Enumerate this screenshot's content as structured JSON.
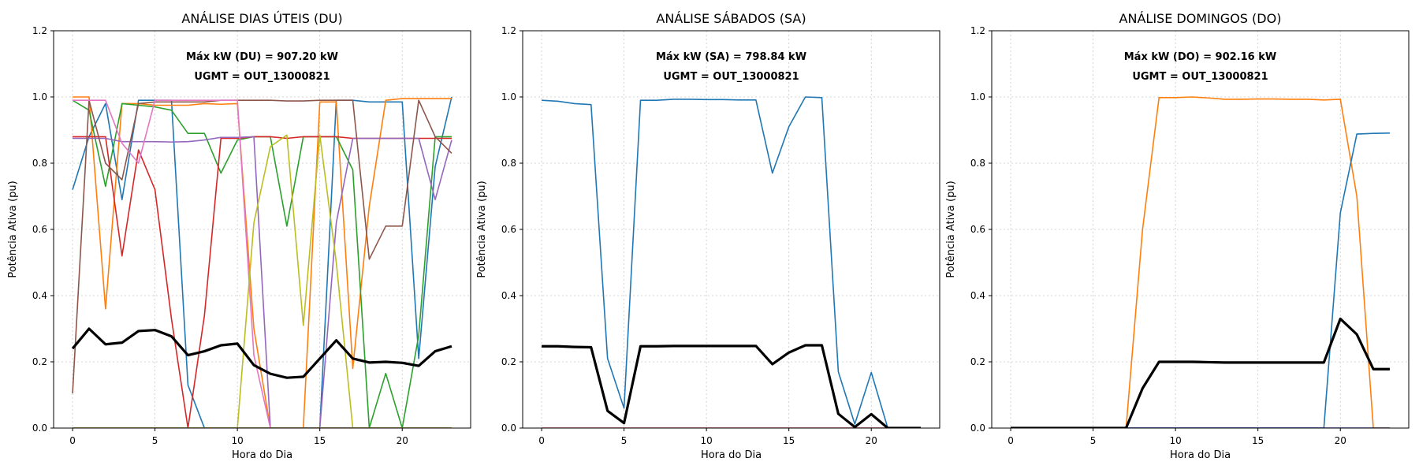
{
  "chart_data": [
    {
      "type": "line",
      "title": "ANÁLISE DIAS ÚTEIS (DU)",
      "annotations": [
        "Máx kW (DU) = 907.20 kW",
        "UGMT = OUT_13000821"
      ],
      "xlabel": "Hora do Dia",
      "ylabel": "Potência Ativa (pu)",
      "xlim": [
        -1.15,
        24.15
      ],
      "ylim": [
        0,
        1.2
      ],
      "xticks": [
        0,
        5,
        10,
        15,
        20
      ],
      "yticks": [
        "0.0",
        "0.2",
        "0.4",
        "0.6",
        "0.8",
        "1.0",
        "1.2"
      ],
      "grid": true,
      "x": [
        0,
        1,
        2,
        3,
        4,
        5,
        6,
        7,
        8,
        9,
        10,
        11,
        12,
        13,
        14,
        15,
        16,
        17,
        18,
        19,
        20,
        21,
        22,
        23
      ],
      "series": [
        {
          "color": "#1f77b4",
          "values": [
            0.72,
            0.88,
            0.98,
            0.69,
            0.99,
            0.99,
            0.99,
            0.13,
            0,
            0,
            0,
            0,
            0,
            0,
            0,
            0,
            0.99,
            0.99,
            0.985,
            0.985,
            0.985,
            0.21,
            0.79,
            1.0
          ]
        },
        {
          "color": "#ff7f0e",
          "values": [
            1.0,
            1.0,
            0.36,
            0.98,
            0.98,
            0.975,
            0.975,
            0.975,
            0.98,
            0.978,
            0.98,
            0.3,
            0,
            0,
            0,
            0.985,
            0.985,
            0.18,
            0.67,
            0.99,
            0.995,
            0.995,
            0.995,
            0.995
          ]
        },
        {
          "color": "#2ca02c",
          "values": [
            0.99,
            0.96,
            0.73,
            0.98,
            0.975,
            0.97,
            0.96,
            0.89,
            0.89,
            0.77,
            0.87,
            0.88,
            0.88,
            0.61,
            0.88,
            0.88,
            0.88,
            0.78,
            0,
            0.165,
            0,
            0.28,
            0.88,
            0.88
          ]
        },
        {
          "color": "#d62728",
          "values": [
            0.88,
            0.88,
            0.88,
            0.52,
            0.84,
            0.72,
            0.33,
            0,
            0.34,
            0.875,
            0.875,
            0.88,
            0.88,
            0.875,
            0.88,
            0.88,
            0.88,
            0.875,
            0.875,
            0.875,
            0.875,
            0.875,
            0.875,
            0.875
          ]
        },
        {
          "color": "#9467bd",
          "values": [
            0.875,
            0.875,
            0.875,
            0.865,
            0.865,
            0.865,
            0.864,
            0.865,
            0.87,
            0.878,
            0.878,
            0.88,
            0,
            0,
            0,
            0,
            0.62,
            0.875,
            0.875,
            0.875,
            0.875,
            0.875,
            0.69,
            0.87
          ]
        },
        {
          "color": "#8c564b",
          "values": [
            0.105,
            0.99,
            0.8,
            0.75,
            0.98,
            0.985,
            0.985,
            0.985,
            0.985,
            0.99,
            0.99,
            0.99,
            0.99,
            0.988,
            0.988,
            0.99,
            0.99,
            0.99,
            0.51,
            0.61,
            0.61,
            0.99,
            0.88,
            0.83
          ]
        },
        {
          "color": "#e377c2",
          "values": [
            0.99,
            0.99,
            0.99,
            0.86,
            0.8,
            0.99,
            0.99,
            0.99,
            0.99,
            0.99,
            0.99,
            0.22,
            0,
            0,
            0,
            0,
            0,
            0,
            0,
            0,
            0,
            0,
            0,
            0
          ]
        },
        {
          "color": "#7f7f7f",
          "values": [
            0,
            0,
            0,
            0,
            0,
            0,
            0,
            0,
            0,
            0,
            0,
            0,
            0,
            0,
            0,
            0,
            0,
            0,
            0,
            0,
            0,
            0,
            0,
            0
          ]
        },
        {
          "color": "#bcbd22",
          "values": [
            0,
            0,
            0,
            0,
            0,
            0,
            0,
            0,
            0,
            0,
            0,
            0.62,
            0.85,
            0.885,
            0.31,
            0.885,
            0.5,
            0,
            0,
            0,
            0,
            0,
            0,
            0
          ]
        },
        {
          "color": "#17becf",
          "values": [
            0,
            0,
            0,
            0,
            0,
            0,
            0,
            0,
            0,
            0,
            0,
            0,
            0,
            0,
            0,
            0,
            0,
            0,
            0,
            0,
            0,
            0,
            0,
            0
          ]
        },
        {
          "color": "#ff7f0e",
          "values": [
            0,
            0,
            0,
            0,
            0,
            0,
            0,
            0,
            0,
            0,
            0,
            0,
            0,
            0,
            0,
            0,
            0,
            0,
            0,
            0,
            0,
            0,
            0,
            0
          ]
        },
        {
          "color": "#000000",
          "width": 3.2,
          "values": [
            0.24,
            0.3,
            0.253,
            0.258,
            0.293,
            0.296,
            0.277,
            0.22,
            0.232,
            0.25,
            0.255,
            0.19,
            0.164,
            0.152,
            0.155,
            0.21,
            0.265,
            0.21,
            0.198,
            0.2,
            0.197,
            0.188,
            0.232,
            0.247
          ]
        }
      ]
    },
    {
      "type": "line",
      "title": "ANÁLISE SÁBADOS (SA)",
      "annotations": [
        "Máx kW (SA) = 798.84 kW",
        "UGMT = OUT_13000821"
      ],
      "xlabel": "Hora do Dia",
      "ylabel": "Potência Ativa (pu)",
      "xlim": [
        -1.15,
        24.15
      ],
      "ylim": [
        0,
        1.2
      ],
      "xticks": [
        0,
        5,
        10,
        15,
        20
      ],
      "yticks": [
        "0.0",
        "0.2",
        "0.4",
        "0.6",
        "0.8",
        "1.0",
        "1.2"
      ],
      "grid": true,
      "x": [
        0,
        1,
        2,
        3,
        4,
        5,
        6,
        7,
        8,
        9,
        10,
        11,
        12,
        13,
        14,
        15,
        16,
        17,
        18,
        19,
        20,
        21,
        22,
        23
      ],
      "series": [
        {
          "color": "#1f77b4",
          "values": [
            0.99,
            0.987,
            0.98,
            0.977,
            0.21,
            0.06,
            0.99,
            0.99,
            0.993,
            0.993,
            0.992,
            0.992,
            0.991,
            0.991,
            0.77,
            0.91,
            1.0,
            0.998,
            0.17,
            0.012,
            0.168,
            0,
            0,
            0
          ]
        },
        {
          "color": "#d62728",
          "values": [
            0,
            0,
            0,
            0,
            0,
            0,
            0,
            0,
            0,
            0,
            0,
            0,
            0,
            0,
            0,
            0,
            0,
            0,
            0,
            0,
            0,
            0,
            0,
            0
          ]
        },
        {
          "color": "#000000",
          "width": 3.2,
          "values": [
            0.247,
            0.247,
            0.245,
            0.244,
            0.052,
            0.015,
            0.247,
            0.247,
            0.248,
            0.248,
            0.248,
            0.248,
            0.248,
            0.248,
            0.193,
            0.228,
            0.25,
            0.25,
            0.043,
            0.003,
            0.042,
            0,
            0,
            0
          ]
        }
      ]
    },
    {
      "type": "line",
      "title": "ANÁLISE DOMINGOS (DO)",
      "annotations": [
        "Máx kW (DO) = 902.16 kW",
        "UGMT = OUT_13000821"
      ],
      "xlabel": "Hora do Dia",
      "ylabel": "Potência Ativa (pu)",
      "xlim": [
        -1.15,
        24.15
      ],
      "ylim": [
        0,
        1.2
      ],
      "xticks": [
        0,
        5,
        10,
        15,
        20
      ],
      "yticks": [
        "0.0",
        "0.2",
        "0.4",
        "0.6",
        "0.8",
        "1.0",
        "1.2"
      ],
      "grid": true,
      "x": [
        0,
        1,
        2,
        3,
        4,
        5,
        6,
        7,
        8,
        9,
        10,
        11,
        12,
        13,
        14,
        15,
        16,
        17,
        18,
        19,
        20,
        21,
        22,
        23
      ],
      "series": [
        {
          "color": "#ff7f0e",
          "values": [
            0,
            0,
            0,
            0,
            0,
            0,
            0,
            0,
            0.6,
            0.998,
            0.998,
            1.0,
            0.997,
            0.993,
            0.993,
            0.994,
            0.994,
            0.993,
            0.993,
            0.991,
            0.993,
            0.7,
            0,
            0
          ]
        },
        {
          "color": "#1f77b4",
          "values": [
            0,
            0,
            0,
            0,
            0,
            0,
            0,
            0,
            0,
            0,
            0,
            0,
            0,
            0,
            0,
            0,
            0,
            0,
            0,
            0,
            0.65,
            0.888,
            0.89,
            0.891
          ]
        },
        {
          "color": "#1f2fb4",
          "values": [
            0,
            0,
            0,
            0,
            0,
            0,
            0,
            0,
            0,
            0,
            0,
            0,
            0,
            0,
            0,
            0,
            0,
            0,
            0,
            0,
            0,
            0,
            0,
            0
          ]
        },
        {
          "color": "#000000",
          "width": 3.2,
          "values": [
            0,
            0,
            0,
            0,
            0,
            0,
            0,
            0,
            0.12,
            0.2,
            0.2,
            0.2,
            0.199,
            0.198,
            0.198,
            0.198,
            0.198,
            0.198,
            0.198,
            0.198,
            0.33,
            0.283,
            0.178,
            0.178
          ]
        }
      ]
    }
  ]
}
